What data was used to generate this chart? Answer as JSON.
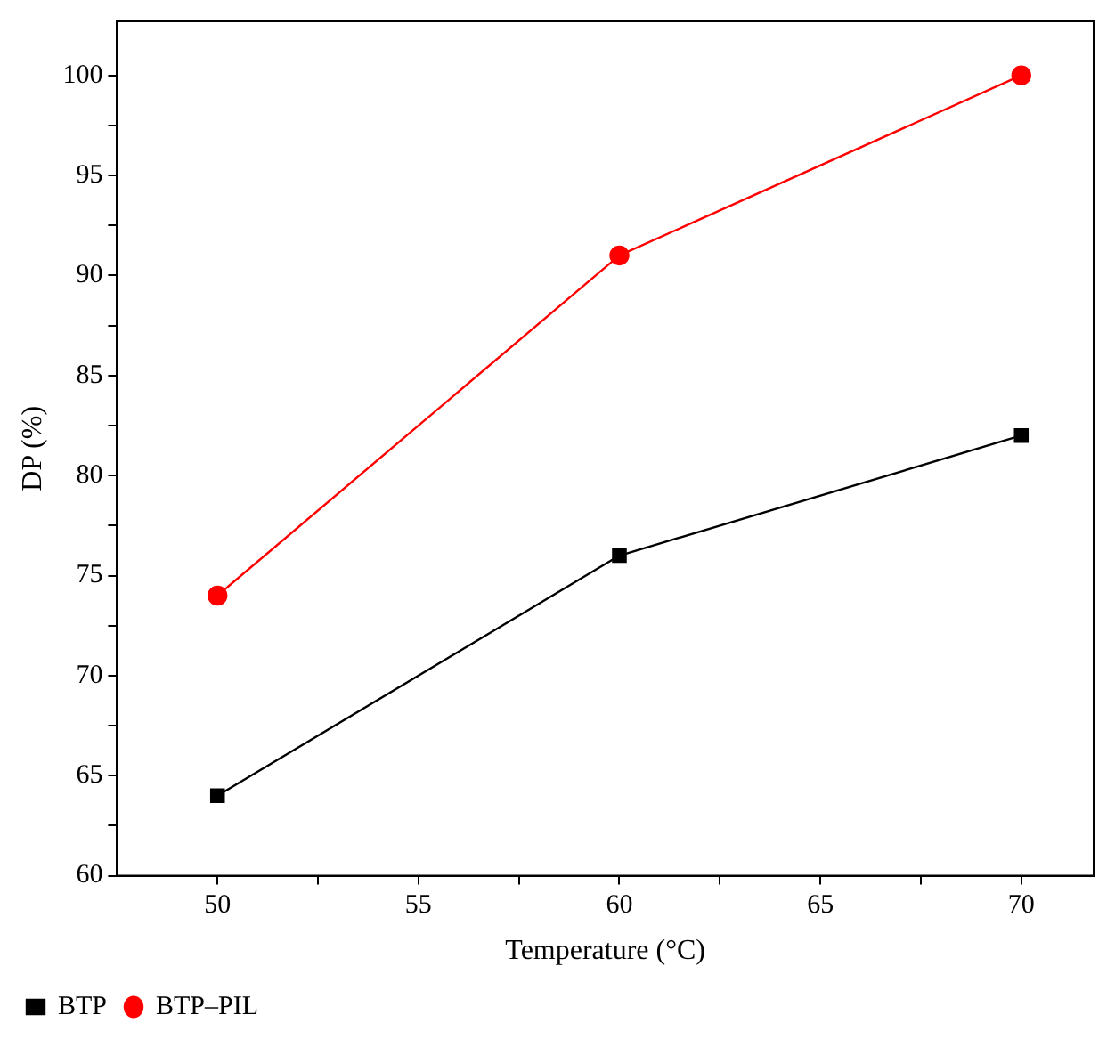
{
  "chart_data": {
    "type": "line",
    "xlabel": "Temperature (°C)",
    "ylabel": "DP (%)",
    "x": [
      50,
      60,
      70
    ],
    "series": [
      {
        "name": "BTP",
        "color": "#000000",
        "values": [
          64,
          76,
          82
        ],
        "marker": "square"
      },
      {
        "name": "BTP–PIL",
        "color": "#ff0000",
        "values": [
          74,
          91,
          100
        ],
        "marker": "circle"
      }
    ],
    "xlim": [
      47.5,
      71.8
    ],
    "xticks": [
      50,
      {
        "value": 52.5,
        "label": null
      },
      55,
      {
        "value": 57.5,
        "label": null
      },
      60,
      {
        "value": 62.5,
        "label": null
      },
      65,
      {
        "value": 67.5,
        "label": null
      },
      70
    ],
    "ylim": [
      60,
      102.7
    ],
    "yticks": [
      60,
      {
        "value": 62.5,
        "label": null
      },
      65,
      {
        "value": 67.5,
        "label": null
      },
      70,
      {
        "value": 72.5,
        "label": null
      },
      75,
      {
        "value": 77.5,
        "label": null
      },
      80,
      {
        "value": 82.5,
        "label": null
      },
      85,
      {
        "value": 87.5,
        "label": null
      },
      90,
      {
        "value": 92.5,
        "label": null
      },
      95,
      {
        "value": 97.5,
        "label": null
      },
      100
    ],
    "grid": false,
    "legend": "bottom left",
    "line_style": "solid"
  }
}
